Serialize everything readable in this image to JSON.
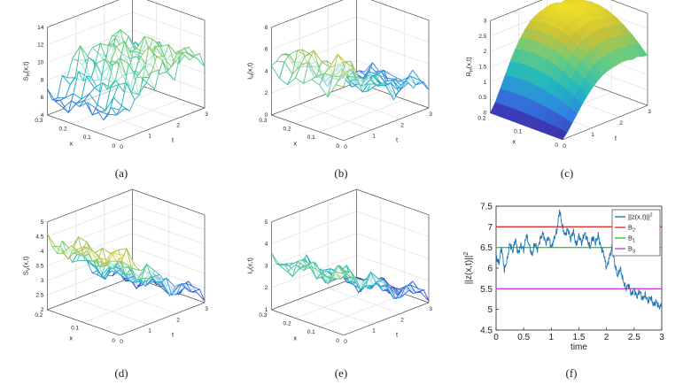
{
  "figure": {
    "captions": [
      "(a)",
      "(b)",
      "(c)",
      "(d)",
      "(e)",
      "(f)"
    ]
  },
  "chart_data": [
    {
      "id": "a",
      "type": "surface",
      "zlabel": "S_H(x,t)",
      "xlabel": "x",
      "ylabel": "t",
      "x_ticks": [
        "0.3",
        "0.2",
        "0.1",
        "0"
      ],
      "t_ticks": [
        "0",
        "1",
        "2",
        "3"
      ],
      "z_ticks": [
        "4",
        "6",
        "8",
        "10",
        "12",
        "14"
      ],
      "zlim": [
        4,
        14
      ],
      "colormap": [
        "#3e26a8",
        "#3180e3",
        "#21b7c0",
        "#61cb86",
        "#c7c136",
        "#f9e523"
      ],
      "surface_profile": [
        7,
        6.5,
        7.2,
        9,
        8.5,
        11,
        10,
        8.2,
        9.5,
        11.5,
        10.5,
        9,
        10.5,
        11.5,
        10.2,
        9.8,
        10,
        9.5
      ]
    },
    {
      "id": "b",
      "type": "surface",
      "zlabel": "I_H(x,t)",
      "xlabel": "x",
      "ylabel": "t",
      "x_ticks": [
        "0.3",
        "0.2",
        "0.1",
        "0"
      ],
      "t_ticks": [
        "0",
        "1",
        "2",
        "3"
      ],
      "z_ticks": [
        "0",
        "2",
        "4",
        "6",
        "8"
      ],
      "zlim": [
        0,
        8
      ],
      "colormap": [
        "#3e26a8",
        "#3180e3",
        "#21b7c0",
        "#61cb86",
        "#c7c136",
        "#f9e523"
      ],
      "surface_profile": [
        4.5,
        5.5,
        6.5,
        6,
        5,
        4.8,
        4.2,
        3.6,
        3.2,
        3.4,
        2.8,
        3,
        2.6,
        2.8,
        2.4,
        2.5,
        2.2,
        2.3
      ]
    },
    {
      "id": "c",
      "type": "surface",
      "zlabel": "R_H(x,t)",
      "xlabel": "x",
      "ylabel": "t",
      "x_ticks": [
        "0.2",
        "0.1",
        "0"
      ],
      "t_ticks": [
        "0",
        "1",
        "2",
        "3"
      ],
      "z_ticks": [
        "0",
        "0.5",
        "1",
        "1.5",
        "2",
        "2.5",
        "3"
      ],
      "zlim": [
        0,
        3
      ],
      "colormap": [
        "#3e26a8",
        "#3180e3",
        "#21b7c0",
        "#61cb86",
        "#c7c136",
        "#f9e523"
      ],
      "surface_profile": [
        0,
        0.3,
        0.7,
        1.1,
        1.5,
        1.85,
        2.15,
        2.4,
        2.6,
        2.72,
        2.8,
        2.85,
        2.9,
        2.88,
        2.8,
        2.85,
        2.75,
        2.7
      ]
    },
    {
      "id": "d",
      "type": "surface",
      "zlabel": "S_V(x,t)",
      "xlabel": "x",
      "ylabel": "t",
      "x_ticks": [
        "0.2",
        "0.1",
        "0"
      ],
      "t_ticks": [
        "0",
        "1",
        "2",
        "3"
      ],
      "z_ticks": [
        "2",
        "2.5",
        "3",
        "3.5",
        "4",
        "4.5",
        "5"
      ],
      "zlim": [
        2,
        5
      ],
      "colormap": [
        "#3e26a8",
        "#3180e3",
        "#21b7c0",
        "#61cb86",
        "#c7c136",
        "#f9e523"
      ],
      "surface_profile": [
        4.6,
        4.4,
        4.3,
        4.5,
        4.0,
        3.8,
        3.6,
        3.7,
        3.3,
        3.2,
        3.0,
        3.1,
        2.8,
        2.7,
        2.6,
        2.5,
        2.4,
        2.3
      ]
    },
    {
      "id": "e",
      "type": "surface",
      "zlabel": "I_V(x,t)",
      "xlabel": "x",
      "ylabel": "t",
      "x_ticks": [
        "0.3",
        "0.2",
        "0.1",
        "0"
      ],
      "t_ticks": [
        "0",
        "1",
        "2",
        "3"
      ],
      "z_ticks": [
        "1",
        "2",
        "3",
        "4",
        "5"
      ],
      "zlim": [
        1,
        5
      ],
      "colormap": [
        "#3e26a8",
        "#3180e3",
        "#21b7c0",
        "#61cb86",
        "#c7c136",
        "#f9e523"
      ],
      "surface_profile": [
        3.6,
        3.4,
        3.5,
        3.3,
        3.2,
        3.0,
        2.8,
        2.9,
        2.5,
        2.4,
        2.2,
        2.0,
        1.9,
        1.8,
        1.7,
        1.6,
        1.5,
        1.4
      ]
    },
    {
      "id": "f",
      "type": "line",
      "xlabel": "time",
      "ylabel": "||z(x,t)||^2",
      "xlim": [
        0,
        3
      ],
      "ylim": [
        4.5,
        7.5
      ],
      "x_ticks": [
        "0",
        "0.5",
        "1",
        "1.5",
        "2",
        "2.5",
        "3"
      ],
      "y_ticks": [
        "4.5",
        "5",
        "5.5",
        "6",
        "6.5",
        "7",
        "7.5"
      ],
      "legend": [
        "||z(x,t)||^2",
        "B_2",
        "B_1",
        "B_3"
      ],
      "legend_position": "top-right",
      "series": [
        {
          "name": "||z(x,t)||^2",
          "color": "#1f77b4",
          "x": [
            0,
            0.05,
            0.1,
            0.15,
            0.2,
            0.25,
            0.3,
            0.35,
            0.4,
            0.45,
            0.5,
            0.55,
            0.6,
            0.65,
            0.7,
            0.75,
            0.8,
            0.85,
            0.9,
            0.95,
            1.0,
            1.05,
            1.1,
            1.15,
            1.2,
            1.25,
            1.3,
            1.35,
            1.4,
            1.45,
            1.5,
            1.55,
            1.6,
            1.65,
            1.7,
            1.75,
            1.8,
            1.85,
            1.9,
            1.95,
            2.0,
            2.05,
            2.1,
            2.15,
            2.2,
            2.25,
            2.3,
            2.35,
            2.4,
            2.45,
            2.5,
            2.55,
            2.6,
            2.65,
            2.7,
            2.75,
            2.8,
            2.85,
            2.9,
            2.95,
            3.0
          ],
          "y": [
            6.3,
            6.1,
            6.5,
            5.95,
            6.2,
            6.6,
            6.4,
            6.7,
            6.35,
            6.55,
            6.45,
            6.8,
            6.55,
            6.3,
            6.6,
            6.45,
            6.7,
            6.85,
            6.6,
            6.75,
            6.5,
            6.7,
            6.9,
            7.4,
            7.0,
            6.8,
            6.95,
            6.7,
            6.9,
            6.55,
            6.8,
            6.6,
            6.85,
            6.7,
            6.5,
            6.75,
            6.6,
            6.8,
            6.5,
            6.35,
            6.0,
            6.25,
            6.5,
            6.1,
            5.8,
            6.0,
            5.7,
            5.5,
            5.6,
            5.35,
            5.5,
            5.3,
            5.45,
            5.25,
            5.35,
            5.2,
            5.3,
            5.1,
            5.2,
            5.05,
            5.1
          ]
        },
        {
          "name": "B_2",
          "color": "#e03030",
          "y_const": 7.0
        },
        {
          "name": "B_1",
          "color": "#40c040",
          "y_const": 6.5
        },
        {
          "name": "B_3",
          "color": "#d040d8",
          "y_const": 5.5
        }
      ]
    }
  ]
}
